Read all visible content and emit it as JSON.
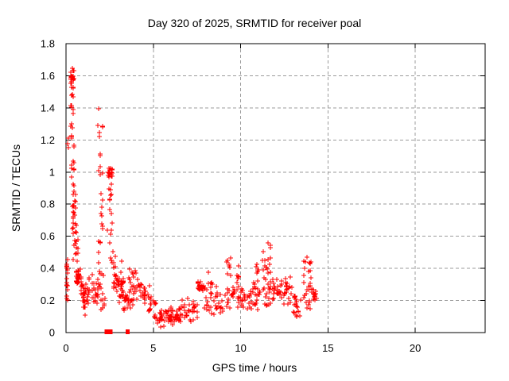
{
  "chart_data": {
    "type": "scatter",
    "title": "Day 320 of 2025, SRMTID for receiver poal",
    "xlabel": "GPS time / hours",
    "ylabel": "SRMTID / TECUs",
    "xlim": [
      0,
      24
    ],
    "ylim": [
      0,
      1.8
    ],
    "x_ticks": {
      "values": [
        0,
        5,
        10,
        15,
        20
      ],
      "labels": [
        "0",
        "5",
        "10",
        "15",
        "20"
      ]
    },
    "y_ticks": {
      "values": [
        0,
        0.2,
        0.4,
        0.6,
        0.8,
        1.0,
        1.2,
        1.4,
        1.6,
        1.8
      ],
      "labels": [
        "0",
        "0.2",
        "0.4",
        "0.6",
        "0.8",
        "1",
        "1.2",
        "1.4",
        "1.6",
        "1.8"
      ]
    },
    "grid": true,
    "grid_style": "dashed",
    "legend": "none",
    "marker": {
      "shape": "plus",
      "size": 7
    },
    "colors": {
      "marker": "#ff0000",
      "grid": "#9b9b9b",
      "axis": "#000000",
      "text": "#000000",
      "background": "#ffffff"
    },
    "x_data_extent": [
      0.02,
      14.35
    ],
    "notable_points": [
      {
        "x": 0.4,
        "y": 1.65,
        "note": "maximum spike"
      },
      {
        "x": 1.9,
        "y": 1.4,
        "note": "secondary spike"
      },
      {
        "x": 2.5,
        "y": 1.0,
        "note": "dense cluster near 1.0"
      },
      {
        "x": 5.8,
        "y": 0.05,
        "note": "minimum band"
      },
      {
        "x": 7.7,
        "y": 0.3,
        "note": "dense blob"
      },
      {
        "x": 9.3,
        "y": 0.47,
        "note": "spike"
      },
      {
        "x": 11.6,
        "y": 0.55,
        "note": "spike"
      },
      {
        "x": 13.9,
        "y": 0.48,
        "note": "final spike"
      }
    ],
    "zero_markers": {
      "x": [
        2.32,
        2.55,
        3.52
      ],
      "y": 0,
      "shape": "filled-square"
    },
    "seed": 1337,
    "clusters": [
      {
        "x": [
          0.02,
          0.12
        ],
        "y": [
          0.25,
          0.47
        ],
        "n": 16,
        "dist": "uniform"
      },
      {
        "x": [
          0.04,
          0.12
        ],
        "y": [
          0.18,
          0.24
        ],
        "n": 3,
        "dist": "uniform"
      },
      {
        "x": [
          0.08,
          0.22
        ],
        "y": [
          1.15,
          1.26
        ],
        "n": 3,
        "dist": "uniform"
      },
      {
        "x": [
          0.25,
          0.5
        ],
        "y": [
          1.51,
          1.66
        ],
        "n": 26,
        "dist": "center"
      },
      {
        "x": [
          0.22,
          0.45
        ],
        "y": [
          1.35,
          1.5
        ],
        "n": 8,
        "dist": "uniform"
      },
      {
        "x": [
          0.25,
          0.42
        ],
        "y": [
          1.21,
          1.34
        ],
        "n": 6,
        "dist": "uniform"
      },
      {
        "x": [
          0.28,
          0.5
        ],
        "y": [
          1.0,
          1.2
        ],
        "n": 9,
        "dist": "uniform"
      },
      {
        "x": [
          0.3,
          0.55
        ],
        "y": [
          0.78,
          1.0
        ],
        "n": 12,
        "dist": "uniform"
      },
      {
        "x": [
          0.3,
          0.62
        ],
        "y": [
          0.58,
          0.78
        ],
        "n": 14,
        "dist": "uniform"
      },
      {
        "x": [
          0.38,
          0.72
        ],
        "y": [
          0.44,
          0.58
        ],
        "n": 12,
        "dist": "uniform"
      },
      {
        "x": [
          0.55,
          0.85
        ],
        "y": [
          0.28,
          0.42
        ],
        "n": 28,
        "dist": "center"
      },
      {
        "x": [
          0.85,
          1.25
        ],
        "y": [
          0.16,
          0.33
        ],
        "n": 28,
        "dist": "center"
      },
      {
        "x": [
          1.0,
          1.15
        ],
        "y": [
          0.11,
          0.16
        ],
        "n": 4,
        "dist": "uniform"
      },
      {
        "x": [
          1.25,
          1.85
        ],
        "y": [
          0.15,
          0.38
        ],
        "n": 32,
        "dist": "center"
      },
      {
        "x": [
          1.82,
          2.1
        ],
        "y": [
          0.6,
          1.42
        ],
        "n": 20,
        "dist": "uniform"
      },
      {
        "x": [
          1.85,
          2.15
        ],
        "y": [
          0.3,
          0.6
        ],
        "n": 10,
        "dist": "uniform"
      },
      {
        "x": [
          1.9,
          2.25
        ],
        "y": [
          0.13,
          0.3
        ],
        "n": 10,
        "dist": "uniform"
      },
      {
        "x": [
          2.4,
          2.68
        ],
        "y": [
          0.95,
          1.04
        ],
        "n": 18,
        "dist": "tight"
      },
      {
        "x": [
          2.35,
          2.7
        ],
        "y": [
          0.55,
          0.95
        ],
        "n": 14,
        "dist": "uniform"
      },
      {
        "x": [
          2.55,
          2.85
        ],
        "y": [
          0.4,
          0.58
        ],
        "n": 8,
        "dist": "uniform"
      },
      {
        "x": [
          2.7,
          3.3
        ],
        "y": [
          0.13,
          0.45
        ],
        "n": 42,
        "dist": "center"
      },
      {
        "x": [
          3.3,
          3.65
        ],
        "y": [
          0.07,
          0.3
        ],
        "n": 14,
        "dist": "center"
      },
      {
        "x": [
          3.6,
          4.35
        ],
        "y": [
          0.14,
          0.43
        ],
        "n": 36,
        "dist": "center"
      },
      {
        "x": [
          4.35,
          4.8
        ],
        "y": [
          0.15,
          0.33
        ],
        "n": 16,
        "dist": "center"
      },
      {
        "x": [
          4.75,
          5.15
        ],
        "y": [
          0.08,
          0.25
        ],
        "n": 14,
        "dist": "center"
      },
      {
        "x": [
          5.1,
          6.5
        ],
        "y": [
          0.03,
          0.17
        ],
        "n": 62,
        "dist": "center"
      },
      {
        "x": [
          6.5,
          7.55
        ],
        "y": [
          0.06,
          0.23
        ],
        "n": 34,
        "dist": "center"
      },
      {
        "x": [
          7.55,
          7.95
        ],
        "y": [
          0.24,
          0.34
        ],
        "n": 24,
        "dist": "tight"
      },
      {
        "x": [
          7.9,
          9.1
        ],
        "y": [
          0.1,
          0.31
        ],
        "n": 38,
        "dist": "center"
      },
      {
        "x": [
          8.1,
          8.4
        ],
        "y": [
          0.3,
          0.38
        ],
        "n": 5,
        "dist": "uniform"
      },
      {
        "x": [
          9.15,
          9.45
        ],
        "y": [
          0.15,
          0.48
        ],
        "n": 16,
        "dist": "uniform"
      },
      {
        "x": [
          9.45,
          10.4
        ],
        "y": [
          0.12,
          0.32
        ],
        "n": 32,
        "dist": "center"
      },
      {
        "x": [
          9.7,
          9.95
        ],
        "y": [
          0.3,
          0.42
        ],
        "n": 6,
        "dist": "uniform"
      },
      {
        "x": [
          10.4,
          11.2
        ],
        "y": [
          0.14,
          0.36
        ],
        "n": 28,
        "dist": "center"
      },
      {
        "x": [
          10.85,
          11.1
        ],
        "y": [
          0.35,
          0.44
        ],
        "n": 6,
        "dist": "uniform"
      },
      {
        "x": [
          11.2,
          11.8
        ],
        "y": [
          0.25,
          0.56
        ],
        "n": 26,
        "dist": "uniform"
      },
      {
        "x": [
          11.3,
          11.75
        ],
        "y": [
          0.16,
          0.25
        ],
        "n": 8,
        "dist": "uniform"
      },
      {
        "x": [
          11.8,
          12.45
        ],
        "y": [
          0.17,
          0.36
        ],
        "n": 24,
        "dist": "center"
      },
      {
        "x": [
          12.45,
          13.0
        ],
        "y": [
          0.14,
          0.38
        ],
        "n": 22,
        "dist": "center"
      },
      {
        "x": [
          13.0,
          13.5
        ],
        "y": [
          0.07,
          0.26
        ],
        "n": 18,
        "dist": "center"
      },
      {
        "x": [
          13.55,
          14.1
        ],
        "y": [
          0.14,
          0.49
        ],
        "n": 28,
        "dist": "uniform"
      },
      {
        "x": [
          14.05,
          14.35
        ],
        "y": [
          0.16,
          0.3
        ],
        "n": 12,
        "dist": "center"
      }
    ]
  }
}
